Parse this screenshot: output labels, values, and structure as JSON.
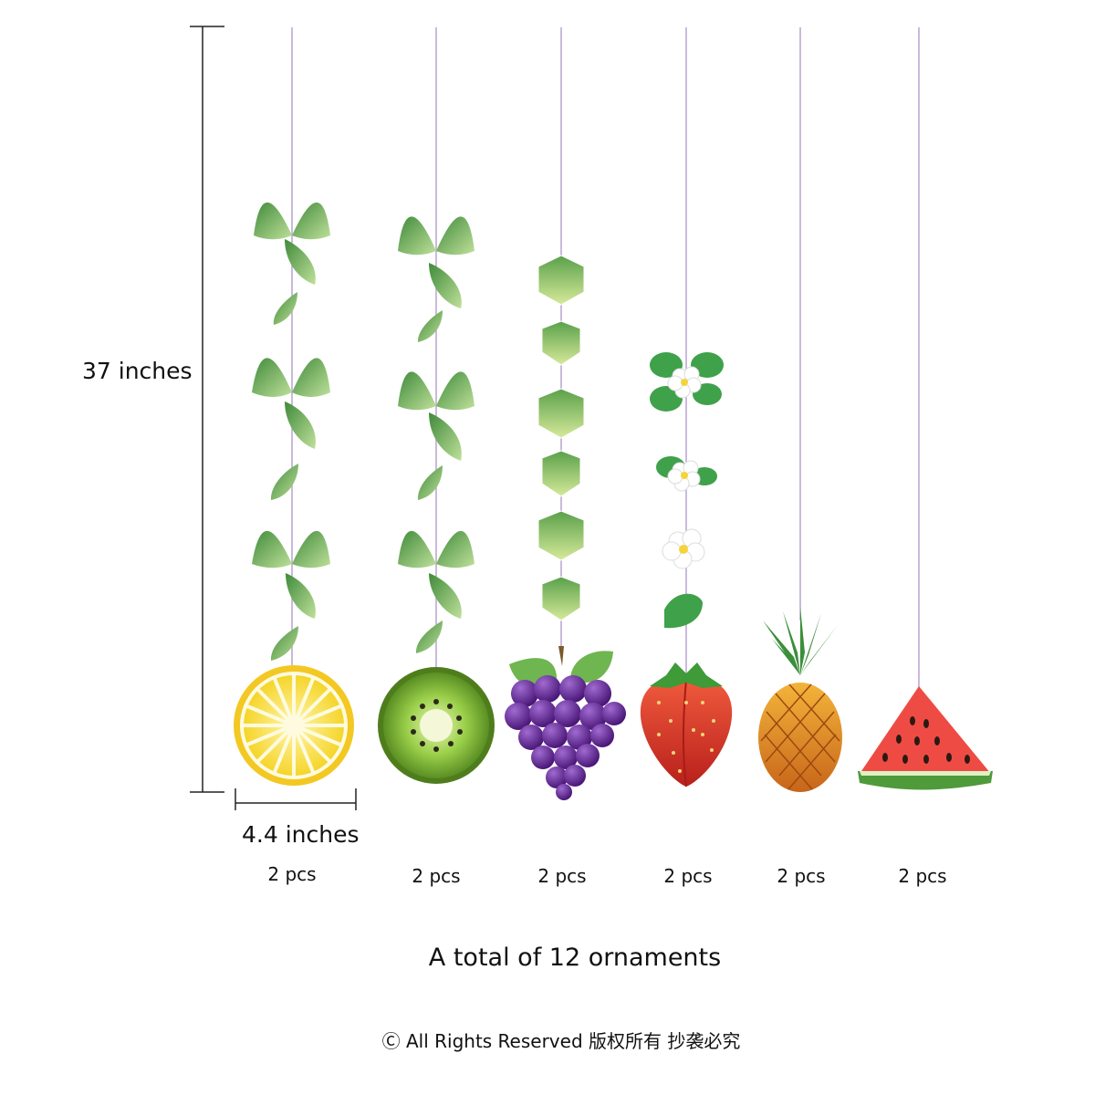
{
  "dimensions": {
    "height_label": "37 inches",
    "width_label": "4.4 inches"
  },
  "ornaments": [
    {
      "name": "lemon",
      "quantity_label": "2 pcs",
      "icon": "lemon-icon"
    },
    {
      "name": "kiwi",
      "quantity_label": "2 pcs",
      "icon": "kiwi-icon"
    },
    {
      "name": "grape",
      "quantity_label": "2 pcs",
      "icon": "grape-icon"
    },
    {
      "name": "strawberry",
      "quantity_label": "2 pcs",
      "icon": "strawberry-icon"
    },
    {
      "name": "pineapple",
      "quantity_label": "2 pcs",
      "icon": "pineapple-icon"
    },
    {
      "name": "watermelon",
      "quantity_label": "2 pcs",
      "icon": "watermelon-icon"
    }
  ],
  "total_label": "A total of 12 ornaments",
  "copyright": "Ⓒ All Rights Reserved 版权所有 抄袭必究",
  "colors": {
    "string": "#b9a3cf",
    "leaf": "#5e9e4a",
    "lemon": "#f7dc3c",
    "kiwi": "#8cc43e",
    "grape": "#6a2d9a",
    "strawberry": "#e23a2e",
    "pineapple": "#e6932a",
    "watermelon": "#ef4b45"
  }
}
